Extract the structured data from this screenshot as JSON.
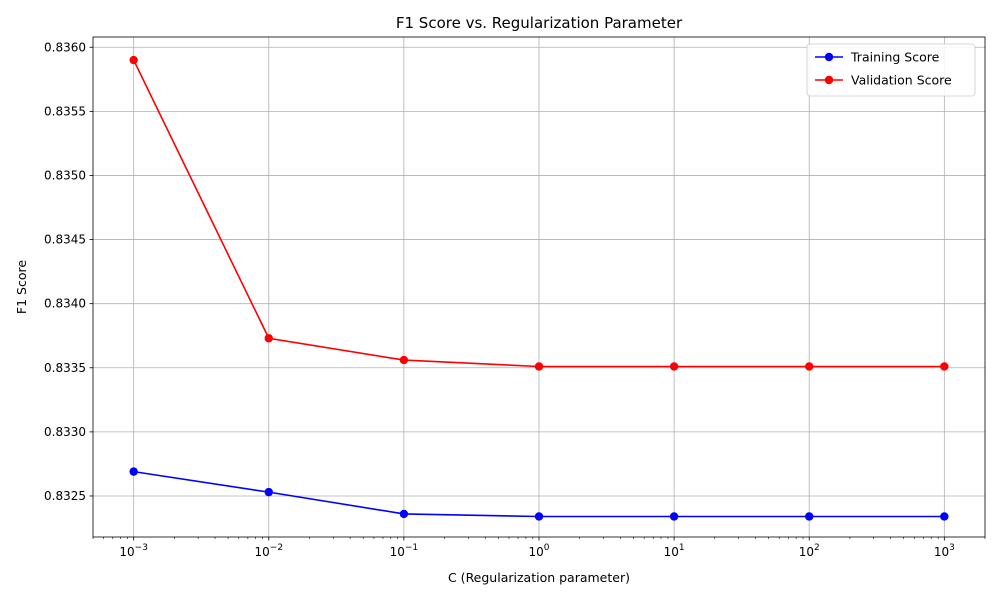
{
  "chart_data": {
    "type": "line",
    "title": "F1 Score vs. Regularization Parameter",
    "xlabel": "C (Regularization parameter)",
    "ylabel": "F1 Score",
    "x_scale": "log",
    "x": [
      0.001,
      0.01,
      0.1,
      1,
      10,
      100,
      1000
    ],
    "x_tick_labels": [
      {
        "base": "10",
        "exp": "−3"
      },
      {
        "base": "10",
        "exp": "−2"
      },
      {
        "base": "10",
        "exp": "−1"
      },
      {
        "base": "10",
        "exp": "0"
      },
      {
        "base": "10",
        "exp": "1"
      },
      {
        "base": "10",
        "exp": "2"
      },
      {
        "base": "10",
        "exp": "3"
      }
    ],
    "y_ticks": [
      0.8325,
      0.833,
      0.8335,
      0.834,
      0.8345,
      0.835,
      0.8355,
      0.836
    ],
    "y_tick_labels": [
      "0.8325",
      "0.8330",
      "0.8335",
      "0.8340",
      "0.8345",
      "0.8350",
      "0.8355",
      "0.8360"
    ],
    "xlim": [
      0.0005,
      2000
    ],
    "ylim": [
      0.83218,
      0.83608
    ],
    "grid": true,
    "legend_position": "top-right",
    "series": [
      {
        "name": "Training Score",
        "color": "#0000ff",
        "values": [
          0.83269,
          0.83253,
          0.83236,
          0.83234,
          0.83234,
          0.83234,
          0.83234
        ]
      },
      {
        "name": "Validation Score",
        "color": "#ff0000",
        "values": [
          0.8359,
          0.83373,
          0.83356,
          0.83351,
          0.83351,
          0.83351,
          0.83351
        ]
      }
    ]
  }
}
